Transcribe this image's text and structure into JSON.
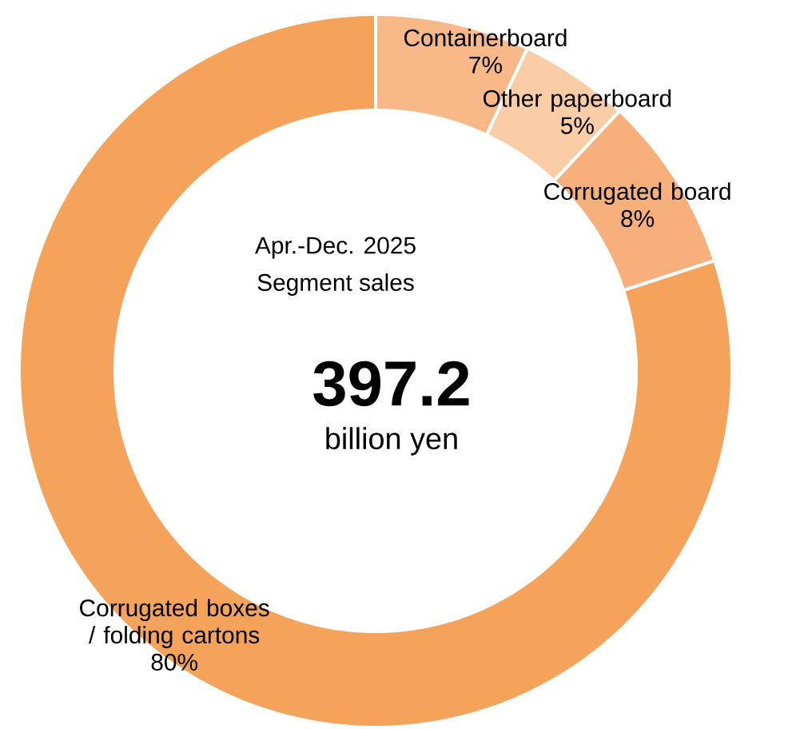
{
  "chart_data": {
    "type": "donut",
    "title": "Apr.-Dec. 2025",
    "subtitle": "Segment sales",
    "annotations": [
      "397.2",
      "billion yen"
    ],
    "categories": [
      "Containerboard",
      "Other paperboard",
      "Corrugated board",
      "Corrugated boxes / folding cartons"
    ],
    "values": [
      7,
      5,
      8,
      80
    ],
    "value_labels": [
      "7%",
      "5%",
      "8%",
      "80%"
    ],
    "colors": [
      "#f8b888",
      "#fbcda6",
      "#f7b07c",
      "#f5a35b"
    ]
  }
}
